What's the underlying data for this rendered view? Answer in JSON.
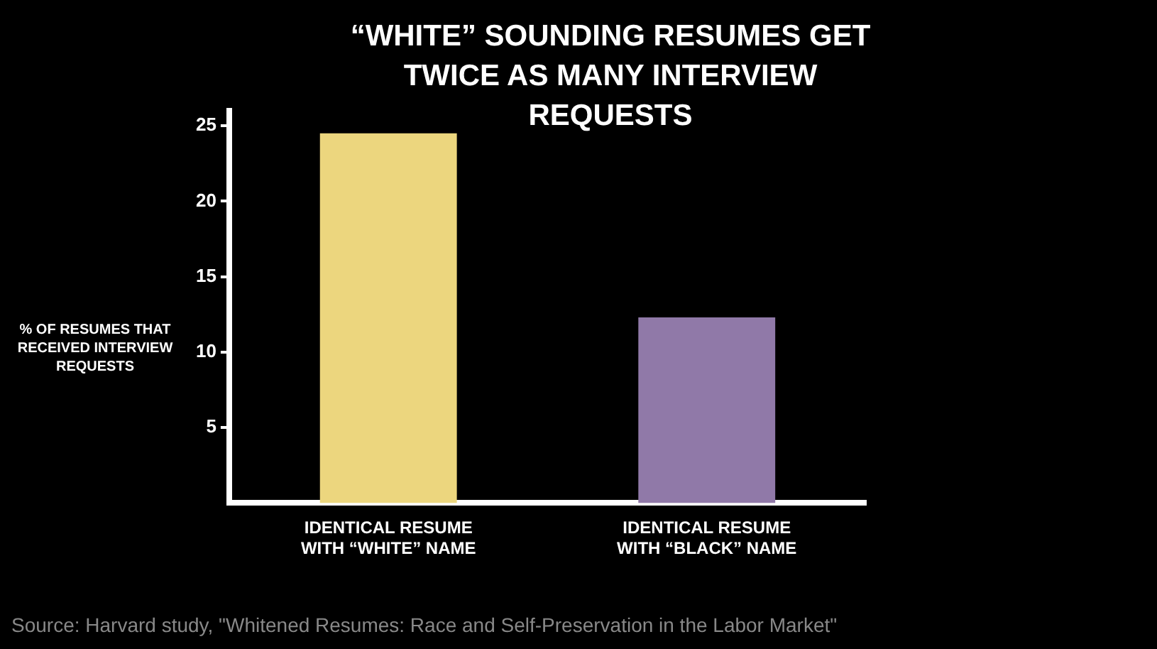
{
  "chart_data": {
    "type": "bar",
    "title": "“WHITE” SOUNDING RESUMES GET TWICE AS MANY INTERVIEW REQUESTS",
    "ylabel": "% OF RESUMES THAT RECEIVED INTERVIEW REQUESTS",
    "categories": [
      "IDENTICAL RESUME WITH “WHITE” NAME",
      "IDENTICAL RESUME WITH “BLACK” NAME"
    ],
    "values": [
      24.5,
      12.3
    ],
    "colors": [
      "#ecd67e",
      "#9079a8"
    ],
    "ylim": [
      0,
      26
    ],
    "yticks": [
      5,
      10,
      15,
      20,
      25
    ],
    "grid": false,
    "legend": false,
    "annotations": [
      "Source: Harvard study, \"Whitened Resumes: Race and Self-Preservation in the Labor Market\""
    ]
  }
}
